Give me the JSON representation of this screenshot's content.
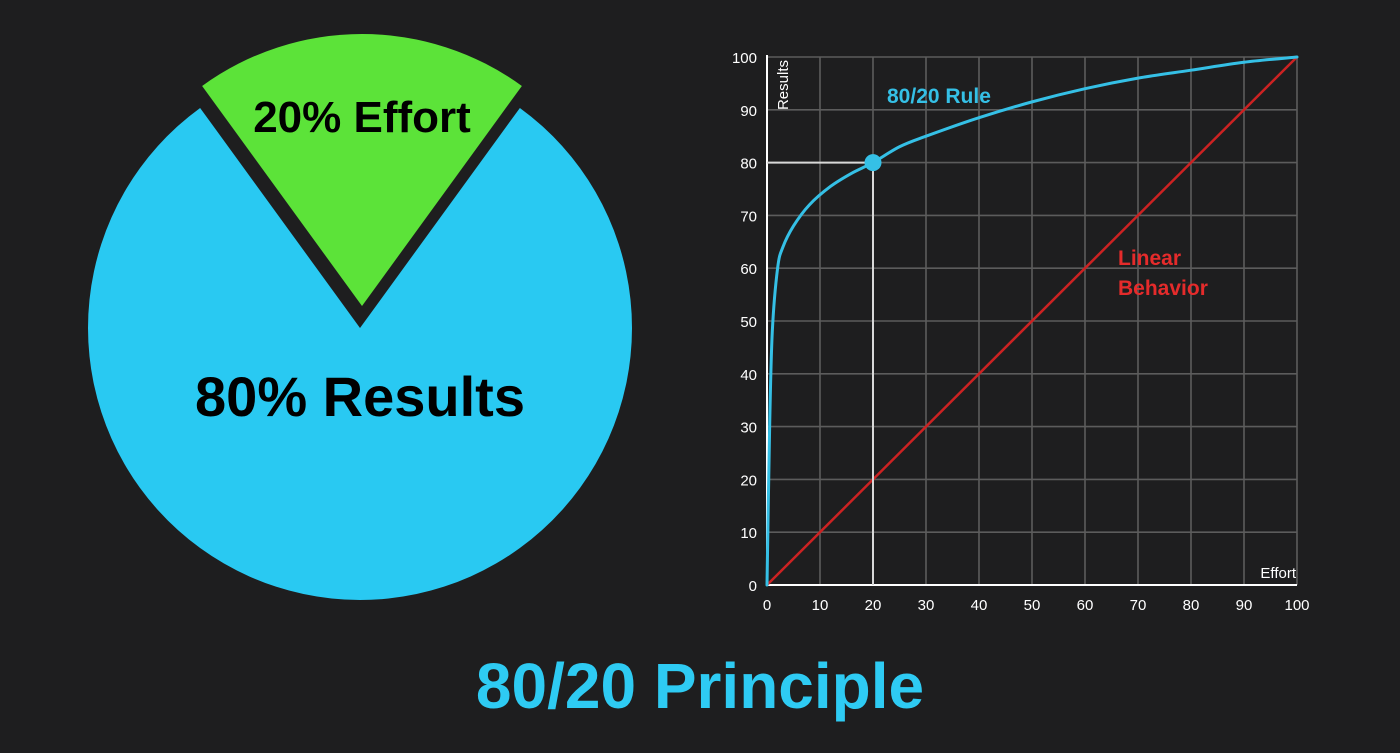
{
  "colors": {
    "background": "#1e1e1f",
    "results_blue": "#29c9f2",
    "effort_green": "#5ce339",
    "rule_curve": "#35c0e6",
    "linear_line": "#cc2222",
    "linear_text": "#e52b2b",
    "grid": "#5c5c5c",
    "axis": "#ffffff",
    "title": "#2ecbf3"
  },
  "pie": {
    "slices": [
      {
        "label": "80% Results",
        "value": 80
      },
      {
        "label": "20% Effort",
        "value": 20
      }
    ]
  },
  "chart_data": [
    {
      "type": "pie",
      "categories": [
        "80% Results",
        "20% Effort"
      ],
      "values": [
        80,
        20
      ]
    },
    {
      "type": "line",
      "xlabel": "Effort",
      "ylabel": "Results",
      "xlim": [
        0,
        100
      ],
      "ylim": [
        0,
        100
      ],
      "xticks": [
        0,
        10,
        20,
        30,
        40,
        50,
        60,
        70,
        80,
        90,
        100
      ],
      "yticks": [
        0,
        10,
        20,
        30,
        40,
        50,
        60,
        70,
        80,
        90,
        100
      ],
      "grid": true,
      "series": [
        {
          "name": "80/20 Rule",
          "x": [
            0,
            0.5,
            1,
            2,
            3,
            5,
            8,
            12,
            16,
            20,
            25,
            30,
            40,
            50,
            60,
            70,
            80,
            90,
            100
          ],
          "y": [
            0,
            30,
            48,
            60,
            64,
            68,
            72,
            75.5,
            78,
            80,
            83,
            85,
            88.5,
            91.5,
            94,
            96,
            97.5,
            99,
            100
          ]
        },
        {
          "name": "Linear Behavior",
          "x": [
            0,
            100
          ],
          "y": [
            0,
            100
          ]
        }
      ],
      "series_labels": {
        "rule": "80/20 Rule",
        "linear_line1": "Linear",
        "linear_line2": "Behavior"
      },
      "highlight_point": {
        "x": 20,
        "y": 80
      }
    }
  ],
  "footer": {
    "title": "80/20 Principle"
  }
}
